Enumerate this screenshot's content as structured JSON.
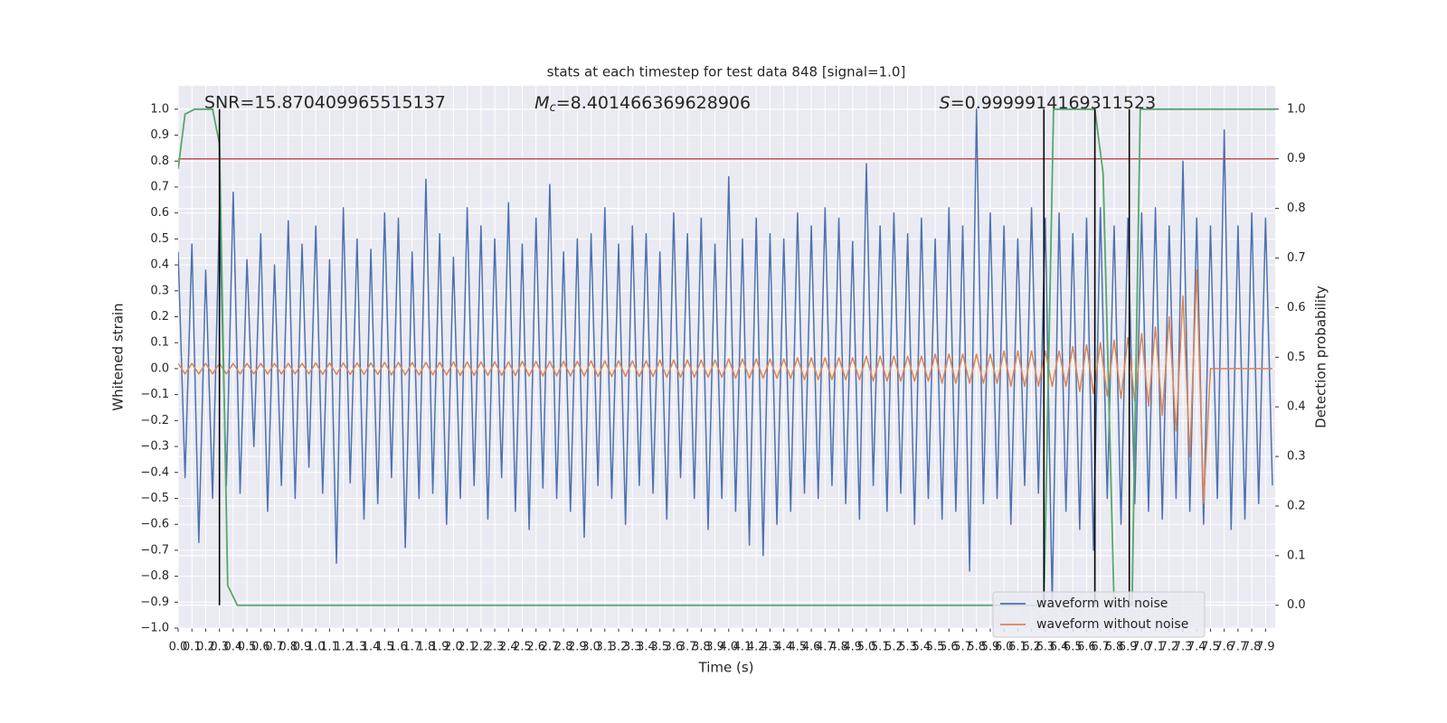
{
  "chart_data": {
    "type": "line",
    "title": "stats at each timestep for test data 848 [signal=1.0]",
    "x_label": "Time (s)",
    "y_label": "Whitened strain",
    "y2_label": "Detection probability",
    "xlim": [
      0,
      7.97
    ],
    "ylim": [
      -1.0,
      1.09
    ],
    "y2lim": [
      -0.046,
      1.047
    ],
    "grid": true,
    "legend_position": "lower right",
    "xticks": [
      {
        "value": 0,
        "label": "0.0"
      },
      0.1,
      0.2,
      0.3,
      0.4,
      0.5,
      0.6,
      0.7,
      0.8,
      0.9,
      {
        "value": 1,
        "label": "1.0"
      },
      1.1,
      1.2,
      1.3,
      1.4,
      1.5,
      1.6,
      1.7,
      1.8,
      1.9,
      {
        "value": 2,
        "label": "2.0"
      },
      2.1,
      2.2,
      2.3,
      2.4,
      2.5,
      2.6,
      2.7,
      2.8,
      2.9,
      {
        "value": 3,
        "label": "3.0"
      },
      3.1,
      3.2,
      3.3,
      3.4,
      3.5,
      3.6,
      3.7,
      3.8,
      3.9,
      {
        "value": 4,
        "label": "4.0"
      },
      4.1,
      4.2,
      4.3,
      4.4,
      4.5,
      4.6,
      4.7,
      4.8,
      4.9,
      {
        "value": 5,
        "label": "5.0"
      },
      5.1,
      5.2,
      5.3,
      5.4,
      5.5,
      5.6,
      5.7,
      5.8,
      5.9,
      {
        "value": 6,
        "label": "6.0"
      },
      6.1,
      6.2,
      6.3,
      6.4,
      6.5,
      6.6,
      6.7,
      6.8,
      6.9,
      {
        "value": 7,
        "label": "7.0"
      },
      7.1,
      7.2,
      7.3,
      7.4,
      7.5,
      7.6,
      7.7,
      7.8,
      7.9
    ],
    "yticks": [
      {
        "value": -1,
        "label": "−1.0"
      },
      {
        "value": -0.9,
        "label": "−0.9"
      },
      {
        "value": -0.8,
        "label": "−0.8"
      },
      {
        "value": -0.7,
        "label": "−0.7"
      },
      {
        "value": -0.6,
        "label": "−0.6"
      },
      {
        "value": -0.5,
        "label": "−0.5"
      },
      {
        "value": -0.4,
        "label": "−0.4"
      },
      {
        "value": -0.3,
        "label": "−0.3"
      },
      {
        "value": -0.2,
        "label": "−0.2"
      },
      {
        "value": -0.1,
        "label": "−0.1"
      },
      {
        "value": 0,
        "label": "0.0"
      },
      0.1,
      0.2,
      0.3,
      0.4,
      0.5,
      0.6,
      0.7,
      0.8,
      0.9,
      {
        "value": 1,
        "label": "1.0"
      }
    ],
    "y2ticks": [
      {
        "value": 0,
        "label": "0.0"
      },
      0.1,
      0.2,
      0.3,
      0.4,
      0.5,
      0.6,
      0.7,
      0.8,
      0.9,
      {
        "value": 1,
        "label": "1.0"
      }
    ],
    "x": [
      0,
      0.05,
      0.1,
      0.15,
      0.2,
      0.25,
      0.3,
      0.35,
      0.4,
      0.45,
      0.5,
      0.55,
      0.6,
      0.65,
      0.7,
      0.75,
      0.8,
      0.85,
      0.9,
      0.95,
      1,
      1.05,
      1.1,
      1.15,
      1.2,
      1.25,
      1.3,
      1.35,
      1.4,
      1.45,
      1.5,
      1.55,
      1.6,
      1.65,
      1.7,
      1.75,
      1.8,
      1.85,
      1.9,
      1.95,
      2,
      2.05,
      2.1,
      2.15,
      2.2,
      2.25,
      2.3,
      2.35,
      2.4,
      2.45,
      2.5,
      2.55,
      2.6,
      2.65,
      2.7,
      2.75,
      2.8,
      2.85,
      2.9,
      2.95,
      3,
      3.05,
      3.1,
      3.15,
      3.2,
      3.25,
      3.3,
      3.35,
      3.4,
      3.45,
      3.5,
      3.55,
      3.6,
      3.65,
      3.7,
      3.75,
      3.8,
      3.85,
      3.9,
      3.95,
      4,
      4.05,
      4.1,
      4.15,
      4.2,
      4.25,
      4.3,
      4.35,
      4.4,
      4.45,
      4.5,
      4.55,
      4.6,
      4.65,
      4.7,
      4.75,
      4.8,
      4.85,
      4.9,
      4.95,
      5,
      5.05,
      5.1,
      5.15,
      5.2,
      5.25,
      5.3,
      5.35,
      5.4,
      5.45,
      5.5,
      5.55,
      5.6,
      5.65,
      5.7,
      5.75,
      5.8,
      5.85,
      5.9,
      5.95,
      6,
      6.05,
      6.1,
      6.15,
      6.2,
      6.25,
      6.3,
      6.35,
      6.4,
      6.45,
      6.5,
      6.55,
      6.6,
      6.65,
      6.7,
      6.75,
      6.8,
      6.85,
      6.9,
      6.95,
      7,
      7.05,
      7.1,
      7.15,
      7.2,
      7.25,
      7.3,
      7.35,
      7.4,
      7.45,
      7.5,
      7.55,
      7.6,
      7.65,
      7.7,
      7.75,
      7.8,
      7.85,
      7.9,
      7.95
    ],
    "series": [
      {
        "name": "waveform with noise",
        "color": "#4c72b0",
        "values": [
          0.45,
          -0.42,
          0.48,
          -0.67,
          0.38,
          -0.5,
          0.61,
          -0.45,
          0.68,
          -0.48,
          0.42,
          -0.3,
          0.52,
          -0.55,
          0.4,
          -0.45,
          0.57,
          -0.5,
          0.48,
          -0.38,
          0.55,
          -0.48,
          0.42,
          -0.75,
          0.62,
          -0.44,
          0.5,
          -0.58,
          0.46,
          -0.52,
          0.6,
          -0.42,
          0.58,
          -0.69,
          0.45,
          -0.5,
          0.73,
          -0.48,
          0.52,
          -0.6,
          0.43,
          -0.5,
          0.62,
          -0.45,
          0.55,
          -0.58,
          0.5,
          -0.42,
          0.64,
          -0.55,
          0.48,
          -0.62,
          0.58,
          -0.46,
          0.71,
          -0.5,
          0.45,
          -0.55,
          0.5,
          -0.65,
          0.52,
          -0.45,
          0.62,
          -0.5,
          0.48,
          -0.6,
          0.55,
          -0.45,
          0.52,
          -0.48,
          0.45,
          -0.58,
          0.6,
          -0.42,
          0.52,
          -0.5,
          0.58,
          -0.62,
          0.48,
          -0.5,
          0.74,
          -0.55,
          0.5,
          -0.68,
          0.58,
          -0.72,
          0.52,
          -0.6,
          0.5,
          -0.55,
          0.6,
          -0.48,
          0.55,
          -0.5,
          0.62,
          -0.45,
          0.58,
          -0.52,
          0.49,
          -0.58,
          0.79,
          -0.45,
          0.55,
          -0.55,
          0.6,
          -0.48,
          0.52,
          -0.6,
          0.58,
          -0.5,
          0.5,
          -0.58,
          0.62,
          -0.55,
          0.55,
          -0.78,
          1.0,
          -0.52,
          0.6,
          -0.5,
          0.55,
          -0.6,
          0.5,
          -0.45,
          0.62,
          -0.48,
          0.58,
          -0.9,
          0.6,
          -0.55,
          0.52,
          -0.62,
          0.58,
          -0.7,
          0.62,
          -0.5,
          0.55,
          -0.6,
          0.58,
          -0.52,
          0.6,
          -0.55,
          0.62,
          -0.58,
          0.55,
          -0.5,
          0.8,
          -0.55,
          0.58,
          -0.6,
          0.55,
          -0.5,
          0.92,
          -0.62,
          0.55,
          -0.58,
          0.6,
          -0.52,
          0.58,
          -0.45
        ]
      },
      {
        "name": "waveform without noise",
        "color": "#dd8452",
        "values": [
          0.02,
          -0.02,
          0.02,
          -0.02,
          0.02,
          -0.02,
          0.02,
          -0.02,
          0.02,
          -0.02,
          0.02,
          -0.02,
          0.02,
          -0.02,
          0.02,
          -0.02,
          0.02,
          -0.02,
          0.02,
          -0.02,
          0.022,
          -0.022,
          0.022,
          -0.022,
          0.022,
          -0.022,
          0.022,
          -0.022,
          0.022,
          -0.022,
          0.024,
          -0.024,
          0.024,
          -0.024,
          0.024,
          -0.024,
          0.024,
          -0.024,
          0.024,
          -0.024,
          0.026,
          -0.026,
          0.026,
          -0.026,
          0.026,
          -0.026,
          0.026,
          -0.026,
          0.026,
          -0.026,
          0.028,
          -0.028,
          0.028,
          -0.028,
          0.028,
          -0.028,
          0.028,
          -0.028,
          0.028,
          -0.028,
          0.03,
          -0.03,
          0.03,
          -0.03,
          0.03,
          -0.03,
          0.03,
          -0.03,
          0.03,
          -0.03,
          0.033,
          -0.033,
          0.033,
          -0.033,
          0.033,
          -0.033,
          0.033,
          -0.033,
          0.033,
          -0.033,
          0.037,
          -0.037,
          0.037,
          -0.037,
          0.037,
          -0.037,
          0.037,
          -0.037,
          0.037,
          -0.037,
          0.042,
          -0.042,
          0.042,
          -0.042,
          0.042,
          -0.042,
          0.042,
          -0.042,
          0.042,
          -0.042,
          0.048,
          -0.048,
          0.048,
          -0.048,
          0.048,
          -0.048,
          0.048,
          -0.048,
          0.048,
          -0.048,
          0.056,
          -0.056,
          0.056,
          -0.056,
          0.056,
          -0.056,
          0.056,
          -0.056,
          0.056,
          -0.056,
          0.068,
          -0.068,
          0.068,
          -0.068,
          0.068,
          -0.068,
          0.068,
          -0.068,
          0.068,
          -0.068,
          0.085,
          -0.088,
          0.092,
          -0.096,
          0.1,
          -0.105,
          0.11,
          -0.115,
          0.12,
          -0.125,
          0.135,
          -0.145,
          0.16,
          -0.18,
          0.2,
          -0.24,
          0.28,
          -0.34,
          0.38,
          -0.52,
          0,
          0,
          0,
          0,
          0,
          0,
          0,
          0,
          0,
          0
        ]
      }
    ],
    "y2_series": {
      "color": "#55a868",
      "axis": "y2",
      "x": [
        0,
        0.05,
        0.12,
        0.25,
        0.3,
        0.36,
        0.43,
        6.29,
        6.36,
        6.66,
        6.72,
        6.8,
        6.93,
        6.99,
        7.97
      ],
      "values": [
        0.88,
        0.99,
        1.0,
        1.0,
        0.93,
        0.04,
        0.0,
        0.0,
        1.0,
        1.0,
        0.87,
        0.0,
        0.0,
        1.0,
        1.0
      ]
    },
    "threshold": {
      "value": 0.9,
      "color": "#c44e52",
      "axis": "y2"
    },
    "markers": {
      "x": [
        0.3,
        6.29,
        6.66,
        6.91
      ],
      "color": "#000000",
      "ylim": [
        0,
        1
      ],
      "axis": "y2"
    },
    "annotations": {
      "snr": {
        "text": "SNR=15.870409965515137",
        "x": 0.19
      },
      "mc": {
        "symbol": "M",
        "subscript": "c",
        "text": "=8.401466369628906",
        "x": 2.59
      },
      "s": {
        "symbol": "S",
        "text": "=0.9999914169311523",
        "x": 5.53
      }
    }
  }
}
